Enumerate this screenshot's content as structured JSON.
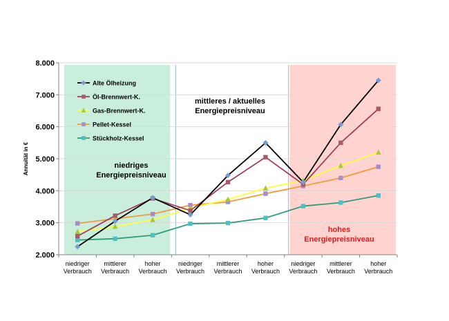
{
  "chart_data": {
    "type": "line",
    "ylabel": "Annuität in €",
    "ylim": [
      2000,
      8000
    ],
    "yticks": [
      2000,
      3000,
      4000,
      5000,
      6000,
      7000,
      8000
    ],
    "ytick_labels": [
      "2.000",
      "3.000",
      "4.000",
      "5.000",
      "6.000",
      "7.000",
      "8.000"
    ],
    "categories": [
      [
        "niedriger",
        "Verbrauch"
      ],
      [
        "mittlerer",
        "Verbrauch"
      ],
      [
        "hoher",
        "Verbrauch"
      ],
      [
        "niedriger",
        "Verbrauch"
      ],
      [
        "mittlerer",
        "Verbrauch"
      ],
      [
        "hoher",
        "Verbrauch"
      ],
      [
        "niedriger",
        "Verbrauch"
      ],
      [
        "mittlerer",
        "Verbrauch"
      ],
      [
        "hoher",
        "Verbrauch"
      ]
    ],
    "series": [
      {
        "name": "Alte Ölheizung",
        "color": "#000000",
        "marker": "diamond",
        "marker_color": "#7a9ccc",
        "values": [
          2250,
          3050,
          3780,
          3250,
          4480,
          5500,
          4270,
          6070,
          7450
        ]
      },
      {
        "name": "Öl-Brennwert-K.",
        "color": "#a0405a",
        "marker": "square",
        "marker_color": "#a85a68",
        "values": [
          2580,
          3220,
          3760,
          3380,
          4270,
          5050,
          4200,
          5500,
          6560
        ]
      },
      {
        "name": "Gas-Brennwert-K.",
        "color": "#ffff3a",
        "marker": "triangle",
        "marker_color": "#a8c832",
        "values": [
          2720,
          2880,
          3090,
          3460,
          3730,
          4080,
          4320,
          4780,
          5200
        ]
      },
      {
        "name": "Pellet-Kessel",
        "color": "#f29b38",
        "marker": "square",
        "marker_color": "#a88cc8",
        "values": [
          2980,
          null,
          3270,
          3550,
          3650,
          3910,
          4150,
          4400,
          4750
        ]
      },
      {
        "name": "Stückholz-Kessel",
        "color": "#2e9c7a",
        "marker": "square",
        "marker_color": "#4fbfbf",
        "values": [
          2460,
          2500,
          2610,
          2970,
          2990,
          3150,
          3520,
          3630,
          3850
        ]
      }
    ],
    "regions": [
      {
        "from": 0,
        "to": 2,
        "color": "#c9efdc",
        "label": [
          "niedriges",
          "Energiepreisniveau"
        ],
        "label_color": "#000000"
      },
      {
        "from": 3,
        "to": 5,
        "color": "#ffffff",
        "label": [
          "mittleres / aktuelles",
          "Energiepreisniveau"
        ],
        "label_color": "#000000"
      },
      {
        "from": 6,
        "to": 8,
        "color": "#ffd3cf",
        "label": [
          "hohes",
          "Energiepreisniveau"
        ],
        "label_color": "#e21a1a"
      }
    ],
    "grid": true,
    "legend_position": "top-left"
  }
}
